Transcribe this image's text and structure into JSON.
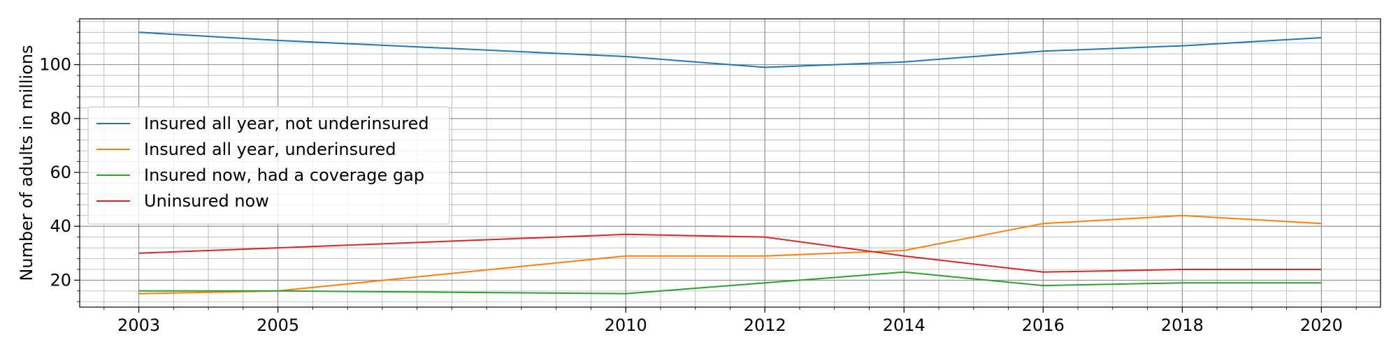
{
  "chart_data": {
    "type": "line",
    "title": "",
    "xlabel": "",
    "ylabel": "Number of adults in millions",
    "x": [
      2003,
      2005,
      2010,
      2012,
      2014,
      2016,
      2018,
      2020
    ],
    "xticks": [
      2003,
      2005,
      2010,
      2012,
      2014,
      2016,
      2018,
      2020
    ],
    "yticks": [
      20,
      40,
      60,
      80,
      100
    ],
    "xlim": [
      2002.15,
      2020.85
    ],
    "ylim": [
      10,
      117
    ],
    "grid": "major and minor",
    "legend_position": "center-left",
    "series": [
      {
        "name": "Insured all year, not underinsured",
        "color": "#1f77b4",
        "values": [
          112,
          109,
          103,
          99,
          101,
          105,
          107,
          110
        ]
      },
      {
        "name": "Insured all year, underinsured",
        "color": "#ff7f0e",
        "values": [
          15,
          16,
          29,
          29,
          31,
          41,
          44,
          41
        ]
      },
      {
        "name": "Insured now, had a coverage gap",
        "color": "#2ca02c",
        "values": [
          16,
          16,
          15,
          19,
          23,
          18,
          19,
          19
        ]
      },
      {
        "name": "Uninsured now",
        "color": "#d62728",
        "values": [
          30,
          32,
          37,
          36,
          29,
          23,
          24,
          24
        ]
      }
    ]
  }
}
